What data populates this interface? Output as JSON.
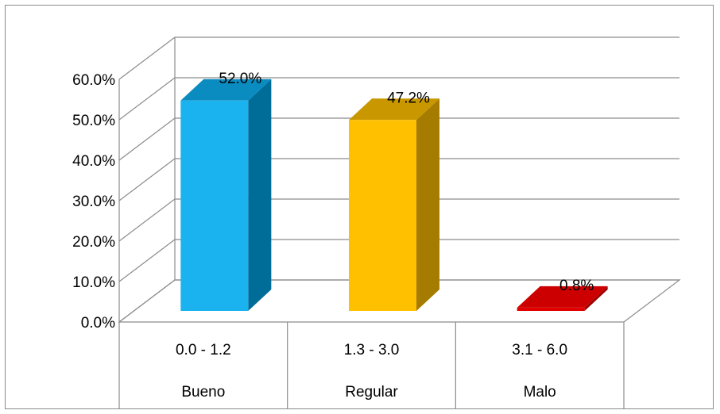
{
  "chart_data": {
    "type": "bar",
    "style": "3d-column",
    "categories": [
      {
        "range": "0.0 - 1.2",
        "label": "Bueno"
      },
      {
        "range": "1.3 - 3.0",
        "label": "Regular"
      },
      {
        "range": "3.1 - 6.0",
        "label": "Malo"
      }
    ],
    "values": [
      52.0,
      47.2,
      0.8
    ],
    "data_labels": [
      "52.0%",
      "47.2%",
      "0.8%"
    ],
    "colors": [
      {
        "front": "#1ab2ef",
        "side": "#006d99",
        "top": "#0a8cc0"
      },
      {
        "front": "#ffc000",
        "side": "#a67c00",
        "top": "#c99700"
      },
      {
        "front": "#e00000",
        "side": "#9a0000",
        "top": "#cc0000"
      }
    ],
    "ylim": [
      0,
      60
    ],
    "yticks": [
      "0.0%",
      "10.0%",
      "20.0%",
      "30.0%",
      "40.0%",
      "50.0%",
      "60.0%"
    ],
    "grid": true,
    "title": "",
    "xlabel": "",
    "ylabel": "",
    "legend": "none"
  }
}
